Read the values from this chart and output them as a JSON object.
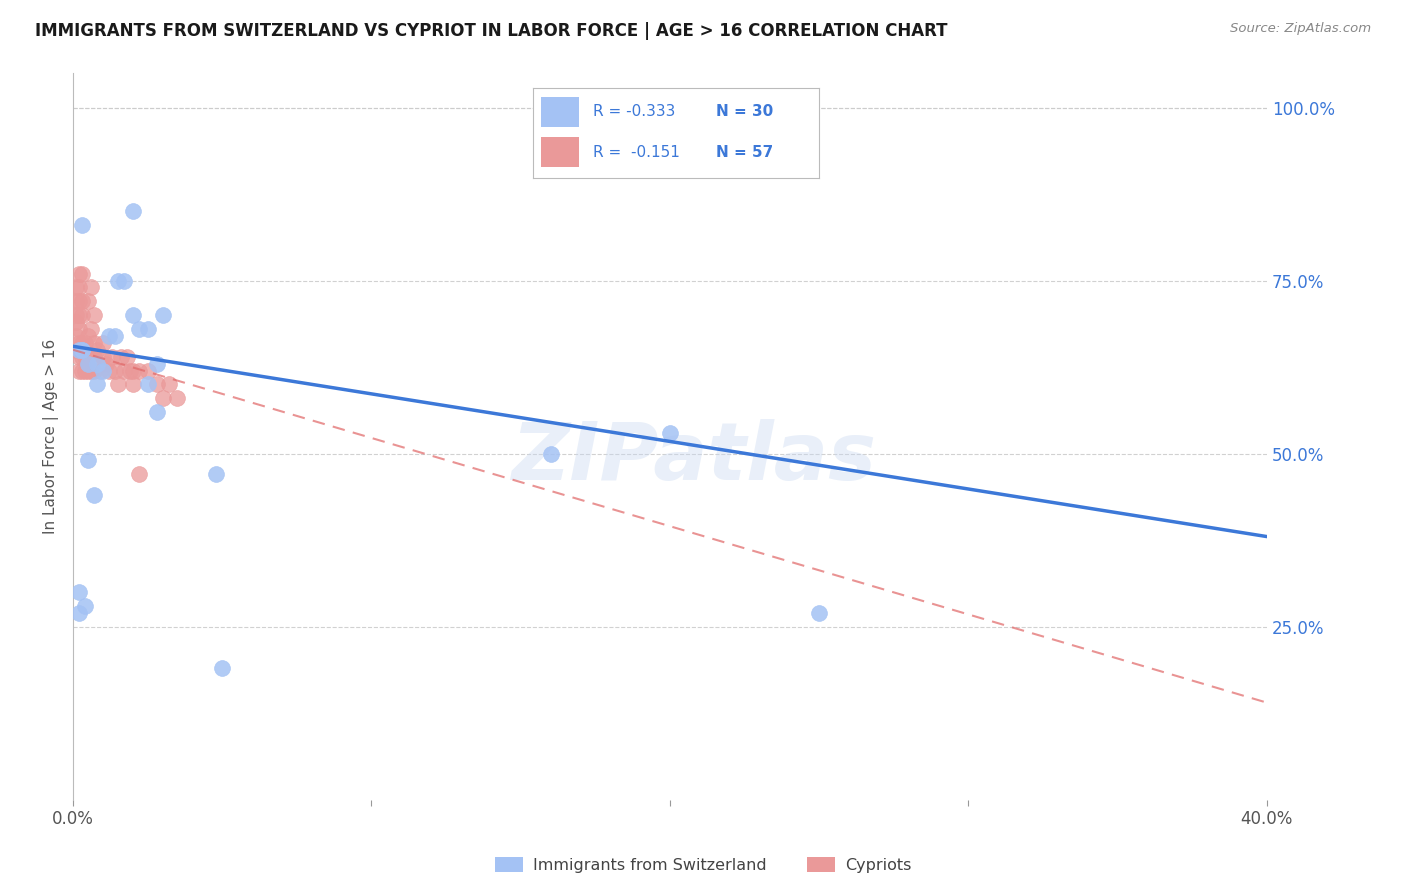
{
  "title": "IMMIGRANTS FROM SWITZERLAND VS CYPRIOT IN LABOR FORCE | AGE > 16 CORRELATION CHART",
  "source_text": "Source: ZipAtlas.com",
  "ylabel": "In Labor Force | Age > 16",
  "xlim": [
    0.0,
    0.4
  ],
  "ylim": [
    0.0,
    1.05
  ],
  "x_ticks": [
    0.0,
    0.1,
    0.2,
    0.3,
    0.4
  ],
  "x_tick_labels": [
    "0.0%",
    "",
    "",
    "",
    "40.0%"
  ],
  "y_tick_labels_right": [
    "100.0%",
    "75.0%",
    "50.0%",
    "25.0%"
  ],
  "y_ticks_right": [
    1.0,
    0.75,
    0.5,
    0.25
  ],
  "watermark": "ZIPatlas",
  "legend_blue_r": "-0.333",
  "legend_blue_n": "30",
  "legend_pink_r": "-0.151",
  "legend_pink_n": "57",
  "blue_color": "#a4c2f4",
  "pink_color": "#ea9999",
  "blue_line_color": "#3c78d8",
  "pink_line_color": "#e06666",
  "grid_color": "#cccccc",
  "background_color": "#ffffff",
  "blue_line_x": [
    0.0,
    0.4
  ],
  "blue_line_y": [
    0.655,
    0.38
  ],
  "pink_line_x": [
    0.0,
    0.4
  ],
  "pink_line_y": [
    0.65,
    0.14
  ],
  "swiss_x": [
    0.003,
    0.02,
    0.005,
    0.008,
    0.002,
    0.002,
    0.003,
    0.01,
    0.012,
    0.014,
    0.015,
    0.017,
    0.02,
    0.022,
    0.025,
    0.028,
    0.03,
    0.025,
    0.003,
    0.008,
    0.028,
    0.048,
    0.002,
    0.05,
    0.16,
    0.2,
    0.25,
    0.005,
    0.004,
    0.007
  ],
  "swiss_y": [
    0.83,
    0.85,
    0.63,
    0.63,
    0.3,
    0.65,
    0.65,
    0.62,
    0.67,
    0.67,
    0.75,
    0.75,
    0.7,
    0.68,
    0.68,
    0.63,
    0.7,
    0.6,
    0.65,
    0.6,
    0.56,
    0.47,
    0.27,
    0.19,
    0.5,
    0.53,
    0.27,
    0.49,
    0.28,
    0.44
  ],
  "cypriot_x": [
    0.001,
    0.001,
    0.001,
    0.001,
    0.001,
    0.001,
    0.002,
    0.002,
    0.002,
    0.002,
    0.002,
    0.002,
    0.002,
    0.002,
    0.003,
    0.003,
    0.003,
    0.003,
    0.003,
    0.003,
    0.004,
    0.004,
    0.004,
    0.005,
    0.005,
    0.005,
    0.005,
    0.006,
    0.006,
    0.006,
    0.006,
    0.007,
    0.007,
    0.007,
    0.007,
    0.008,
    0.009,
    0.01,
    0.01,
    0.011,
    0.012,
    0.013,
    0.014,
    0.015,
    0.016,
    0.017,
    0.018,
    0.019,
    0.02,
    0.02,
    0.022,
    0.022,
    0.025,
    0.028,
    0.03,
    0.032,
    0.035
  ],
  "cypriot_y": [
    0.65,
    0.67,
    0.69,
    0.7,
    0.72,
    0.74,
    0.62,
    0.64,
    0.66,
    0.68,
    0.7,
    0.72,
    0.74,
    0.76,
    0.62,
    0.64,
    0.66,
    0.7,
    0.72,
    0.76,
    0.62,
    0.64,
    0.66,
    0.62,
    0.64,
    0.67,
    0.72,
    0.62,
    0.64,
    0.68,
    0.74,
    0.62,
    0.64,
    0.66,
    0.7,
    0.65,
    0.62,
    0.64,
    0.66,
    0.63,
    0.62,
    0.64,
    0.62,
    0.6,
    0.64,
    0.62,
    0.64,
    0.62,
    0.6,
    0.62,
    0.62,
    0.47,
    0.62,
    0.6,
    0.58,
    0.6,
    0.58
  ]
}
